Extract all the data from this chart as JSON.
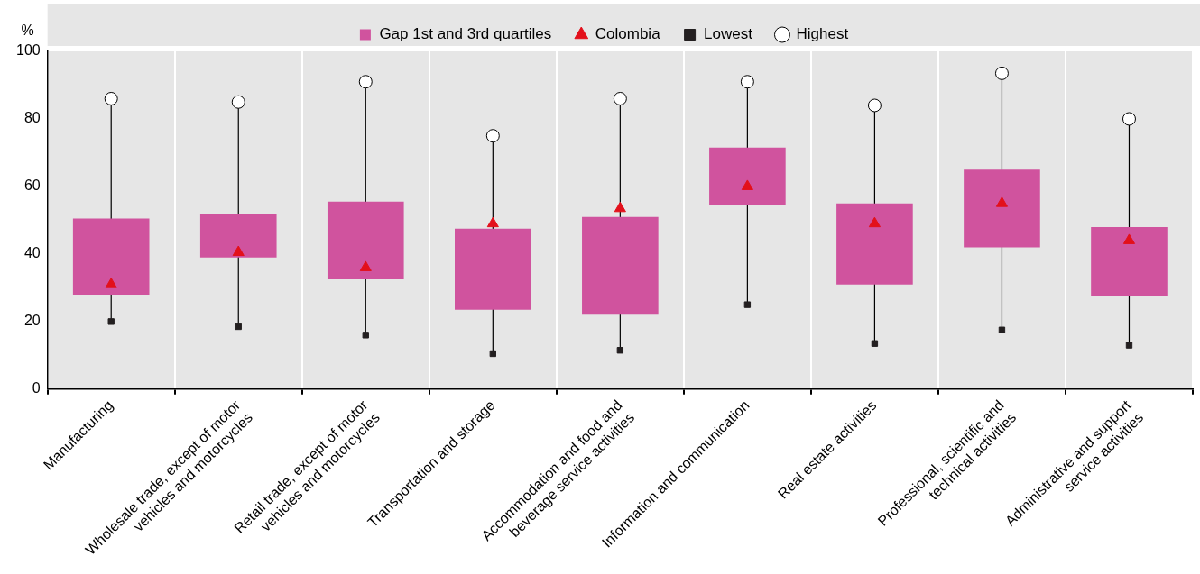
{
  "chart_data": {
    "type": "bar",
    "ylabel": "%",
    "categories": [
      "Manufacturing",
      "Wholesale trade, except of motor vehicles and motorcycles",
      "Retail trade, except of motor vehicles and motorcycles",
      "Transportation and storage",
      "Accommodation and food and beverage service activities",
      "Information and communication",
      "Real estate activities",
      "Professional, scientific and technical activities",
      "Administrative and support service activities"
    ],
    "series": [
      {
        "name": "Gap 1st and 3rd quartiles",
        "type": "bar",
        "color": "#d0539e",
        "values": [
          22.5,
          13,
          23,
          24,
          29,
          17,
          24,
          23,
          20.5
        ],
        "base": [
          28,
          39,
          32.5,
          23.5,
          22,
          54.5,
          31,
          42,
          27.5
        ]
      },
      {
        "name": "Colombia",
        "type": "scatter",
        "marker": "triangle",
        "color": "#e3101b",
        "values": [
          31,
          40.5,
          36,
          49,
          53.5,
          60,
          49,
          55,
          44
        ]
      },
      {
        "name": "Lowest",
        "type": "scatter",
        "marker": "square",
        "color": "#231f20",
        "values": [
          20,
          18.5,
          16,
          10.5,
          11.5,
          25,
          13.5,
          17.5,
          13
        ]
      },
      {
        "name": "Highest",
        "type": "scatter",
        "marker": "circle",
        "color": "#ffffff",
        "values": [
          86,
          85,
          91,
          75,
          86,
          91,
          84,
          93.5,
          80
        ]
      }
    ],
    "ylim": [
      0,
      100
    ],
    "yticks": [
      0,
      20,
      40,
      60,
      80,
      100
    ],
    "grid": "x",
    "legend": "top"
  }
}
